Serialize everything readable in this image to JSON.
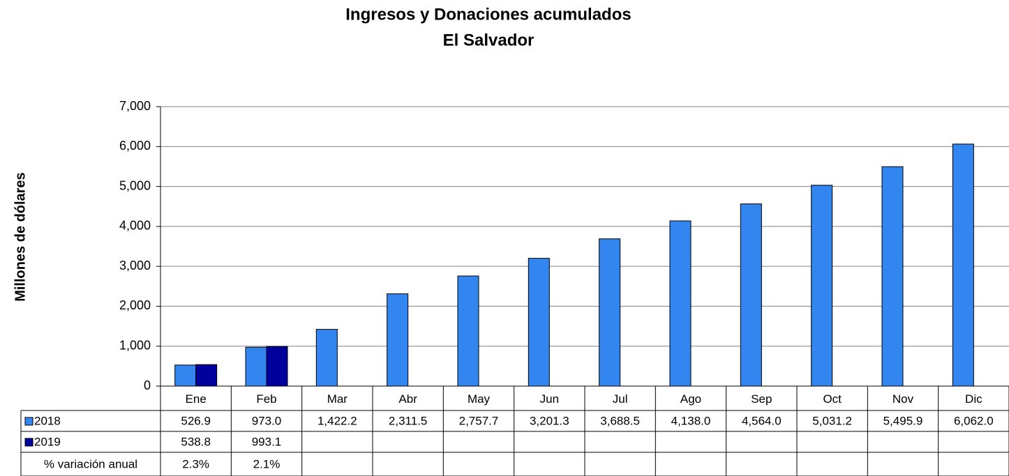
{
  "chart_data": {
    "type": "bar",
    "title": "Ingresos y Donaciones acumulados",
    "subtitle": "El Salvador",
    "y_label": "Millones de dólares",
    "categories": [
      "Ene",
      "Feb",
      "Mar",
      "Abr",
      "May",
      "Jun",
      "Jul",
      "Ago",
      "Sep",
      "Oct",
      "Nov",
      "Dic"
    ],
    "series": [
      {
        "name": "2018",
        "color": "#3385f0",
        "values": [
          526.9,
          973.0,
          1422.2,
          2311.5,
          2757.7,
          3201.3,
          3688.5,
          4138.0,
          4564.0,
          5031.2,
          5495.9,
          6062.0
        ],
        "value_labels": [
          "526.9",
          "973.0",
          "1,422.2",
          "2,311.5",
          "2,757.7",
          "3,201.3",
          "3,688.5",
          "4,138.0",
          "4,564.0",
          "5,031.2",
          "5,495.9",
          "6,062.0"
        ]
      },
      {
        "name": "2019",
        "color": "#00009c",
        "values": [
          538.8,
          993.1,
          null,
          null,
          null,
          null,
          null,
          null,
          null,
          null,
          null,
          null
        ],
        "value_labels": [
          "538.8",
          "993.1",
          null,
          null,
          null,
          null,
          null,
          null,
          null,
          null,
          null,
          null
        ]
      }
    ],
    "table_rows": [
      {
        "name": "% variación anual",
        "values": [
          2.3,
          2.1,
          null,
          null,
          null,
          null,
          null,
          null,
          null,
          null,
          null,
          null
        ],
        "value_labels": [
          "2.3%",
          "2.1%",
          null,
          null,
          null,
          null,
          null,
          null,
          null,
          null,
          null,
          null
        ]
      }
    ],
    "ylim": [
      0,
      7000
    ],
    "yticks": [
      0,
      {
        "value": 1000,
        "label": "1,000"
      },
      {
        "value": 2000,
        "label": "2,000"
      },
      {
        "value": 3000,
        "label": "3,000"
      },
      {
        "value": 4000,
        "label": "4,000"
      },
      {
        "value": 5000,
        "label": "5,000"
      },
      {
        "value": 6000,
        "label": "6,000"
      },
      {
        "value": 7000,
        "label": "7,000"
      }
    ],
    "grid": true
  }
}
